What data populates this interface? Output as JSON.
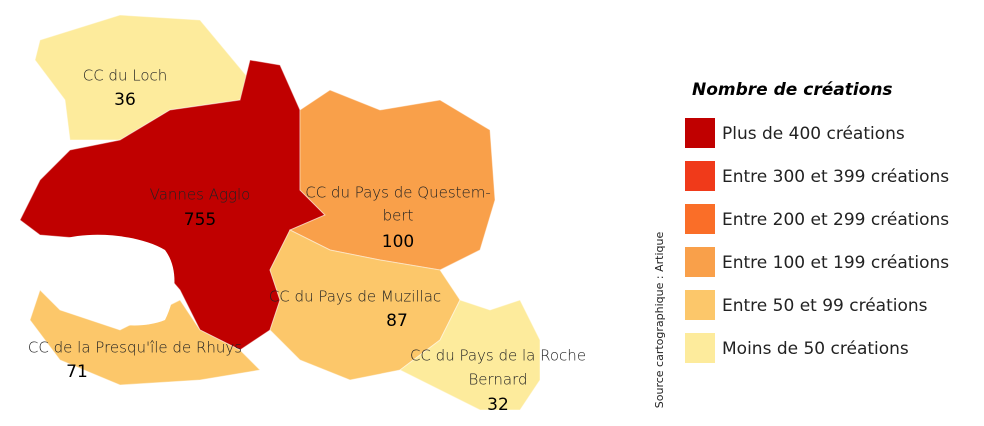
{
  "map": {
    "regions": [
      {
        "name": [
          "CC du Loch"
        ],
        "value": 36,
        "color": "#fdeb9c"
      },
      {
        "name": [
          "Vannes Agglo"
        ],
        "value": 755,
        "color": "#c00000"
      },
      {
        "name": [
          "CC du Pays de Questem-",
          "bert"
        ],
        "value": 100,
        "color": "#f9a04a"
      },
      {
        "name": [
          "CC du Pays de Muzillac"
        ],
        "value": 87,
        "color": "#fcc76a"
      },
      {
        "name": [
          "CC de la Presqu'île de Rhuys"
        ],
        "value": 71,
        "color": "#fcc76a"
      },
      {
        "name": [
          "CC du Pays de la Roche",
          "Bernard"
        ],
        "value": 32,
        "color": "#fdeb9c"
      }
    ],
    "legend": {
      "title": "Nombre de créations",
      "items": [
        {
          "label": "Plus de 400 créations",
          "color": "#c00000"
        },
        {
          "label": "Entre 300 et 399 créations",
          "color": "#f03a1a"
        },
        {
          "label": "Entre 200 et 299 créations",
          "color": "#fa6e28"
        },
        {
          "label": "Entre 100 et 199 créations",
          "color": "#f9a04a"
        },
        {
          "label": "Entre 50 et 99 créations",
          "color": "#fcc76a"
        },
        {
          "label": "Moins de 50 créations",
          "color": "#fdeb9c"
        }
      ]
    },
    "source": "Source cartographique : Artique"
  }
}
